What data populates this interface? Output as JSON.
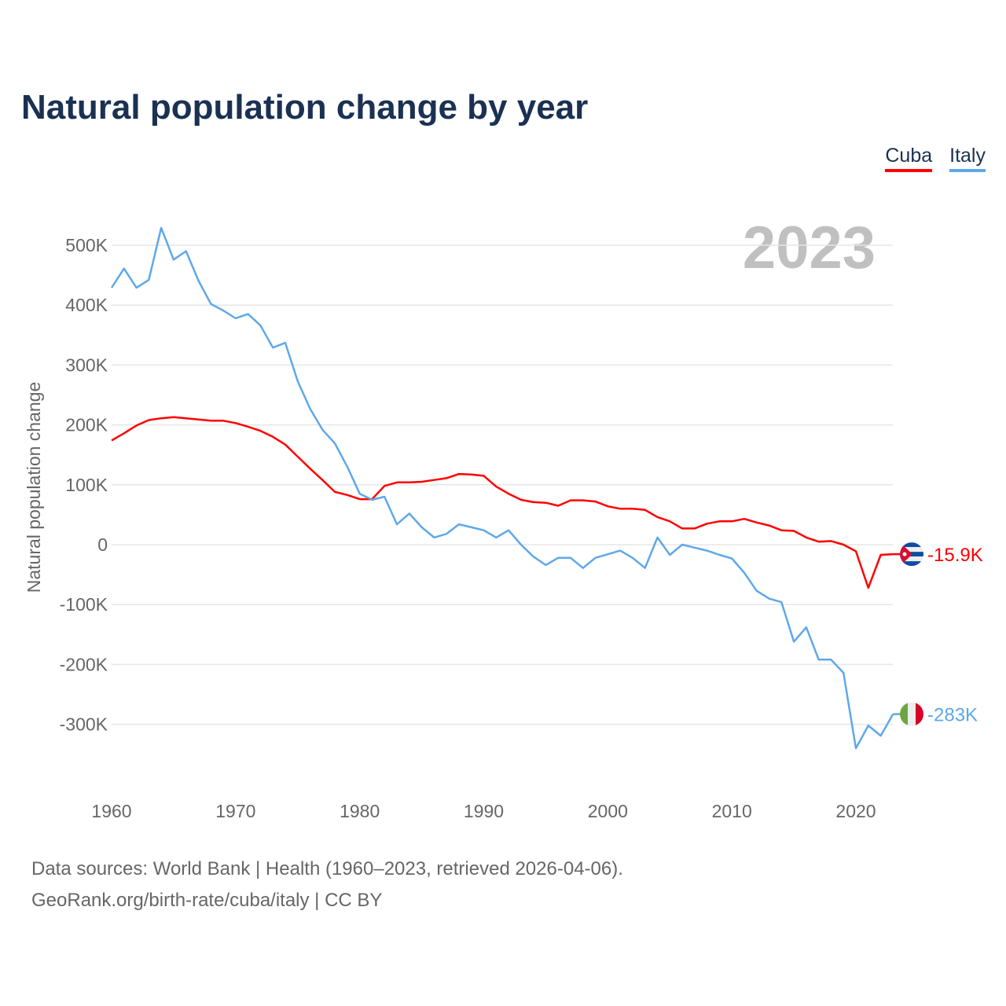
{
  "title": "Natural population change by year",
  "year_label": "2023",
  "footer": {
    "line1": "Data sources: World Bank | Health (1960–2023, retrieved 2026-04-06).",
    "line2": "GeoRank.org/birth-rate/cuba/italy | CC BY"
  },
  "chart_data": {
    "type": "line",
    "title": "Natural population change by year",
    "xlabel": "",
    "ylabel": "Natural population change",
    "xlim": [
      1960,
      2023
    ],
    "ylim": [
      -380000,
      550000
    ],
    "grid": true,
    "legend": "top-right",
    "x_ticks": [
      1960,
      1970,
      1980,
      1990,
      2000,
      2010,
      2020
    ],
    "x_tick_labels": [
      "1960",
      "1970",
      "1980",
      "1990",
      "2000",
      "2010",
      "2020"
    ],
    "y_ticks": [
      500000,
      400000,
      300000,
      200000,
      100000,
      0,
      -100000,
      -200000,
      -300000
    ],
    "y_tick_labels": [
      "500K",
      "400K",
      "300K",
      "200K",
      "100K",
      "0",
      "-100K",
      "-200K",
      "-300K"
    ],
    "x_start": 1960,
    "series": [
      {
        "name": "Cuba",
        "color": "#ff0000",
        "end_label": "-15.9K",
        "flag": "cuba-flag",
        "values": [
          174000,
          186000,
          199000,
          208000,
          211000,
          213000,
          211000,
          209000,
          207000,
          207000,
          203000,
          197000,
          190000,
          180000,
          167000,
          147000,
          127000,
          108000,
          88000,
          83000,
          76000,
          76000,
          98000,
          104000,
          104000,
          105000,
          108000,
          111000,
          118000,
          117000,
          115000,
          97000,
          85000,
          75000,
          71000,
          70000,
          65000,
          74000,
          74000,
          72000,
          64000,
          60000,
          60000,
          58000,
          46000,
          39000,
          27000,
          27000,
          35000,
          39000,
          39000,
          43000,
          37000,
          32000,
          24000,
          23000,
          12000,
          5000,
          6000,
          0,
          -11000,
          -72000,
          -17000,
          -15900
        ]
      },
      {
        "name": "Italy",
        "color": "#5ea8ea",
        "end_label": "-283K",
        "flag": "italy-flag",
        "values": [
          429000,
          461000,
          429000,
          442000,
          529000,
          476000,
          490000,
          441000,
          402000,
          391000,
          378000,
          385000,
          366000,
          329000,
          337000,
          273000,
          227000,
          192000,
          169000,
          130000,
          85000,
          75000,
          80000,
          34000,
          52000,
          29000,
          12000,
          18000,
          34000,
          29000,
          24000,
          12000,
          24000,
          0,
          -20000,
          -34000,
          -22000,
          -22000,
          -39000,
          -22000,
          -16000,
          -10000,
          -22000,
          -39000,
          12000,
          -17000,
          0,
          -5000,
          -10000,
          -17000,
          -23000,
          -47000,
          -77000,
          -90000,
          -96000,
          -162000,
          -138000,
          -192000,
          -192000,
          -214000,
          -340000,
          -302000,
          -319000,
          -283000
        ]
      }
    ]
  }
}
